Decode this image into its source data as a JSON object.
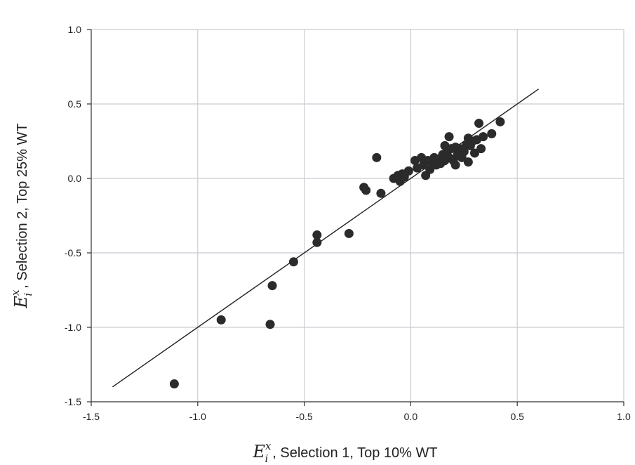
{
  "chart_data": {
    "type": "scatter",
    "xlabel": {
      "symbol": "E",
      "subscript": "i",
      "superscript": "x",
      "text": ", Selection 1, Top 10% WT"
    },
    "ylabel": {
      "symbol": "E",
      "subscript": "i",
      "superscript": "x",
      "text": ", Selection 2, Top 25% WT"
    },
    "xlim": [
      -1.5,
      1.0
    ],
    "ylim": [
      -1.5,
      1.0
    ],
    "xticks": [
      -1.5,
      -1.0,
      -0.5,
      0.0,
      0.5,
      1.0
    ],
    "yticks": [
      -1.5,
      -1.0,
      -0.5,
      0.0,
      0.5,
      1.0
    ],
    "xtick_labels": [
      "-1.5",
      "-1.0",
      "-0.5",
      "0.0",
      "0.5",
      "1.0"
    ],
    "ytick_labels": [
      "-1.5",
      "-1.0",
      "-0.5",
      "0.0",
      "0.5",
      "1.0"
    ],
    "grid": true,
    "marker_color": "#2b2b2b",
    "line_color": "#222222",
    "fit_line": {
      "x": [
        -1.4,
        0.6
      ],
      "y": [
        -1.4,
        0.6
      ]
    },
    "points": [
      {
        "x": -1.11,
        "y": -1.38
      },
      {
        "x": -0.89,
        "y": -0.95
      },
      {
        "x": -0.66,
        "y": -0.98
      },
      {
        "x": -0.65,
        "y": -0.72
      },
      {
        "x": -0.55,
        "y": -0.56
      },
      {
        "x": -0.44,
        "y": -0.38
      },
      {
        "x": -0.44,
        "y": -0.43
      },
      {
        "x": -0.29,
        "y": -0.37
      },
      {
        "x": -0.22,
        "y": -0.06
      },
      {
        "x": -0.21,
        "y": -0.08
      },
      {
        "x": -0.16,
        "y": 0.14
      },
      {
        "x": -0.14,
        "y": -0.1
      },
      {
        "x": -0.08,
        "y": 0.0
      },
      {
        "x": -0.06,
        "y": 0.02
      },
      {
        "x": -0.05,
        "y": -0.02
      },
      {
        "x": -0.04,
        "y": 0.03
      },
      {
        "x": -0.03,
        "y": 0.01
      },
      {
        "x": -0.01,
        "y": 0.05
      },
      {
        "x": 0.02,
        "y": 0.12
      },
      {
        "x": 0.03,
        "y": 0.07
      },
      {
        "x": 0.05,
        "y": 0.14
      },
      {
        "x": 0.06,
        "y": 0.09
      },
      {
        "x": 0.07,
        "y": 0.02
      },
      {
        "x": 0.08,
        "y": 0.12
      },
      {
        "x": 0.09,
        "y": 0.06
      },
      {
        "x": 0.1,
        "y": 0.11
      },
      {
        "x": 0.11,
        "y": 0.14
      },
      {
        "x": 0.12,
        "y": 0.09
      },
      {
        "x": 0.13,
        "y": 0.13
      },
      {
        "x": 0.14,
        "y": 0.1
      },
      {
        "x": 0.15,
        "y": 0.16
      },
      {
        "x": 0.16,
        "y": 0.22
      },
      {
        "x": 0.16,
        "y": 0.12
      },
      {
        "x": 0.17,
        "y": 0.17
      },
      {
        "x": 0.18,
        "y": 0.28
      },
      {
        "x": 0.18,
        "y": 0.14
      },
      {
        "x": 0.19,
        "y": 0.2
      },
      {
        "x": 0.2,
        "y": 0.12
      },
      {
        "x": 0.21,
        "y": 0.09
      },
      {
        "x": 0.21,
        "y": 0.21
      },
      {
        "x": 0.22,
        "y": 0.16
      },
      {
        "x": 0.23,
        "y": 0.2
      },
      {
        "x": 0.24,
        "y": 0.14
      },
      {
        "x": 0.25,
        "y": 0.18
      },
      {
        "x": 0.26,
        "y": 0.22
      },
      {
        "x": 0.27,
        "y": 0.11
      },
      {
        "x": 0.27,
        "y": 0.27
      },
      {
        "x": 0.28,
        "y": 0.22
      },
      {
        "x": 0.29,
        "y": 0.25
      },
      {
        "x": 0.3,
        "y": 0.17
      },
      {
        "x": 0.31,
        "y": 0.26
      },
      {
        "x": 0.32,
        "y": 0.37
      },
      {
        "x": 0.33,
        "y": 0.2
      },
      {
        "x": 0.34,
        "y": 0.28
      },
      {
        "x": 0.38,
        "y": 0.3
      },
      {
        "x": 0.42,
        "y": 0.38
      }
    ]
  }
}
